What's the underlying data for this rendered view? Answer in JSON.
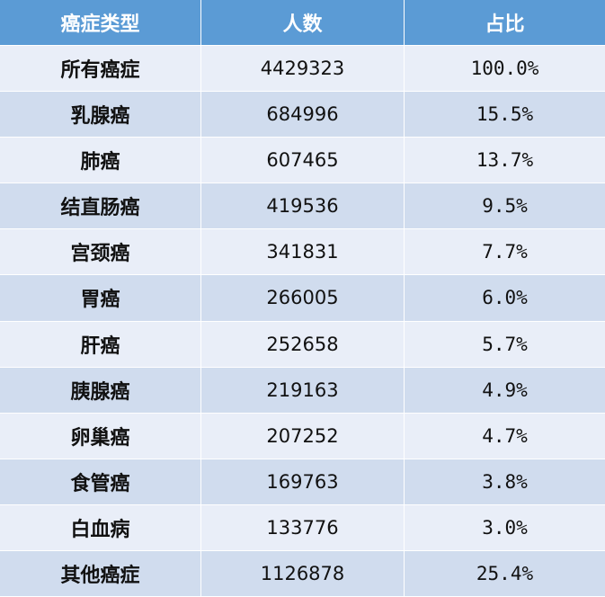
{
  "table": {
    "headers": [
      "癌症类型",
      "人数",
      "占比"
    ],
    "rows": [
      {
        "type": "所有癌症",
        "count": "4429323",
        "share": "100.0%"
      },
      {
        "type": "乳腺癌",
        "count": "684996",
        "share": "15.5%"
      },
      {
        "type": "肺癌",
        "count": "607465",
        "share": "13.7%"
      },
      {
        "type": "结直肠癌",
        "count": "419536",
        "share": "9.5%"
      },
      {
        "type": "宫颈癌",
        "count": "341831",
        "share": "7.7%"
      },
      {
        "type": "胃癌",
        "count": "266005",
        "share": "6.0%"
      },
      {
        "type": "肝癌",
        "count": "252658",
        "share": "5.7%"
      },
      {
        "type": "胰腺癌",
        "count": "219163",
        "share": "4.9%"
      },
      {
        "type": "卵巢癌",
        "count": "207252",
        "share": "4.7%"
      },
      {
        "type": "食管癌",
        "count": "169763",
        "share": "3.8%"
      },
      {
        "type": "白血病",
        "count": "133776",
        "share": "3.0%"
      },
      {
        "type": "其他癌症",
        "count": "1126878",
        "share": "25.4%"
      }
    ]
  },
  "colors": {
    "header_bg": "#5b9bd5",
    "row_light": "#e9eef8",
    "row_dark": "#d0dcee"
  }
}
